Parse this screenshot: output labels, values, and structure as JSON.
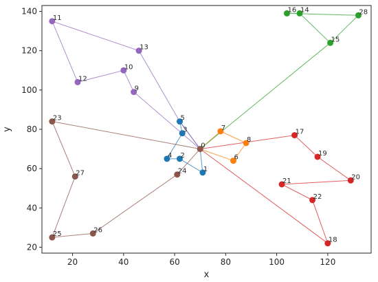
{
  "chart_data": {
    "type": "line",
    "xlabel": "x",
    "ylabel": "y",
    "xlim": [
      8,
      137
    ],
    "ylim": [
      17,
      143
    ],
    "x_ticks": [
      20,
      40,
      60,
      80,
      100,
      120
    ],
    "y_ticks": [
      20,
      40,
      60,
      80,
      100,
      120,
      140
    ],
    "grid": false,
    "depot": {
      "label": "0",
      "x": 70,
      "y": 70
    },
    "points": [
      {
        "label": "1",
        "x": 71,
        "y": 58
      },
      {
        "label": "2",
        "x": 62,
        "y": 65
      },
      {
        "label": "3",
        "x": 63,
        "y": 78
      },
      {
        "label": "4",
        "x": 57,
        "y": 65
      },
      {
        "label": "5",
        "x": 62,
        "y": 84
      },
      {
        "label": "6",
        "x": 83,
        "y": 64
      },
      {
        "label": "7",
        "x": 78,
        "y": 79
      },
      {
        "label": "8",
        "x": 88,
        "y": 73
      },
      {
        "label": "9",
        "x": 44,
        "y": 99
      },
      {
        "label": "10",
        "x": 40,
        "y": 110
      },
      {
        "label": "11",
        "x": 12,
        "y": 135
      },
      {
        "label": "12",
        "x": 22,
        "y": 104
      },
      {
        "label": "13",
        "x": 46,
        "y": 120
      },
      {
        "label": "14",
        "x": 109,
        "y": 139
      },
      {
        "label": "15",
        "x": 121,
        "y": 124
      },
      {
        "label": "16",
        "x": 104,
        "y": 139
      },
      {
        "label": "17",
        "x": 107,
        "y": 77
      },
      {
        "label": "18",
        "x": 120,
        "y": 22
      },
      {
        "label": "19",
        "x": 116,
        "y": 66
      },
      {
        "label": "20",
        "x": 129,
        "y": 54
      },
      {
        "label": "21",
        "x": 102,
        "y": 52
      },
      {
        "label": "22",
        "x": 114,
        "y": 44
      },
      {
        "label": "23",
        "x": 12,
        "y": 84
      },
      {
        "label": "24",
        "x": 61,
        "y": 57
      },
      {
        "label": "25",
        "x": 12,
        "y": 25
      },
      {
        "label": "26",
        "x": 28,
        "y": 27
      },
      {
        "label": "27",
        "x": 21,
        "y": 56
      },
      {
        "label": "28",
        "x": 132,
        "y": 138
      }
    ],
    "routes": [
      {
        "color": "#1f77b4",
        "nodes": [
          "0",
          "1",
          "2",
          "4",
          "3",
          "5",
          "0"
        ]
      },
      {
        "color": "#ff7f0e",
        "nodes": [
          "0",
          "7",
          "8",
          "6",
          "0"
        ]
      },
      {
        "color": "#2ca02c",
        "nodes": [
          "0",
          "15",
          "14",
          "16",
          "28",
          "15",
          "0"
        ]
      },
      {
        "color": "#d62728",
        "nodes": [
          "0",
          "17",
          "19",
          "20",
          "21",
          "22",
          "18",
          "0"
        ]
      },
      {
        "color": "#9467bd",
        "nodes": [
          "0",
          "5",
          "13",
          "11",
          "12",
          "10",
          "9",
          "0"
        ]
      },
      {
        "color": "#8c564b",
        "nodes": [
          "0",
          "23",
          "27",
          "25",
          "26",
          "24",
          "0"
        ]
      }
    ]
  }
}
